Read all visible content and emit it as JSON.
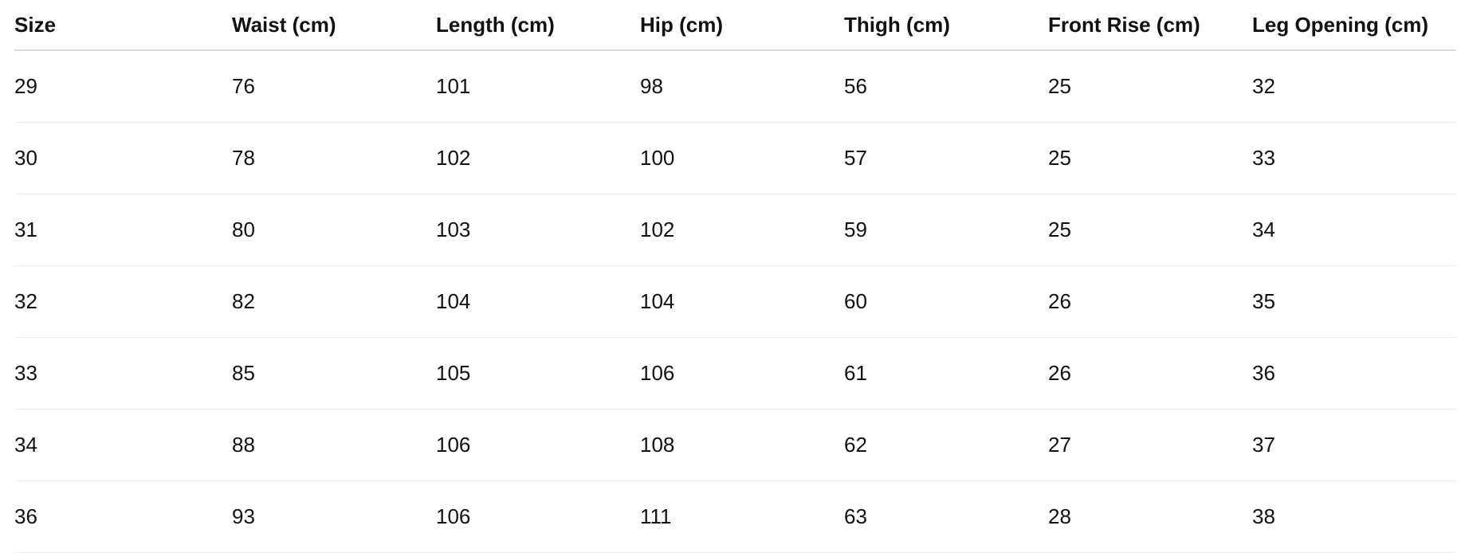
{
  "table": {
    "headers": [
      "Size",
      "Waist (cm)",
      "Length (cm)",
      "Hip (cm)",
      "Thigh (cm)",
      "Front Rise (cm)",
      "Leg Opening (cm)"
    ],
    "rows": [
      [
        "29",
        "76",
        "101",
        "98",
        "56",
        "25",
        "32"
      ],
      [
        "30",
        "78",
        "102",
        "100",
        "57",
        "25",
        "33"
      ],
      [
        "31",
        "80",
        "103",
        "102",
        "59",
        "25",
        "34"
      ],
      [
        "32",
        "82",
        "104",
        "104",
        "60",
        "26",
        "35"
      ],
      [
        "33",
        "85",
        "105",
        "106",
        "61",
        "26",
        "36"
      ],
      [
        "34",
        "88",
        "106",
        "108",
        "62",
        "27",
        "37"
      ],
      [
        "36",
        "93",
        "106",
        "111",
        "63",
        "28",
        "38"
      ]
    ]
  }
}
